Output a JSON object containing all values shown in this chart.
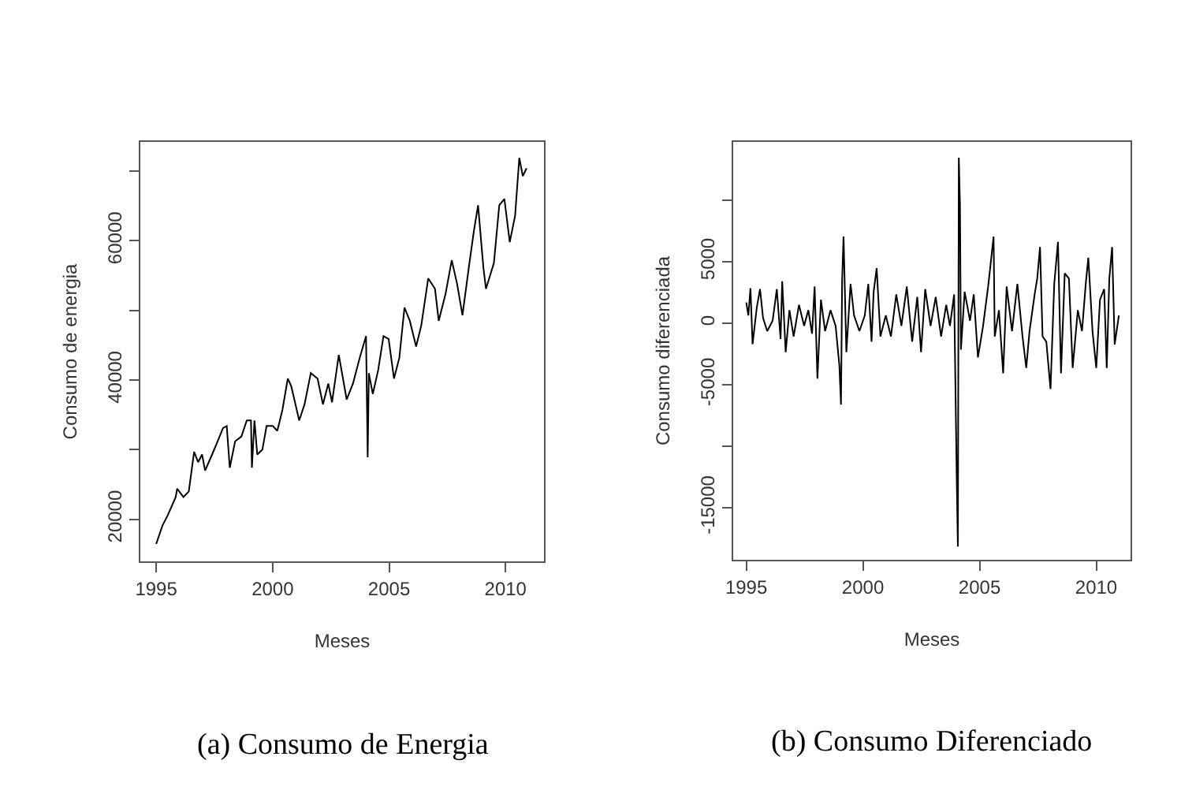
{
  "chart_data": [
    {
      "type": "line",
      "xlabel": "Meses",
      "ylabel": "Consumo de energia",
      "annotations": [
        "(a) Consumo de Energia"
      ],
      "x": [
        1995.0,
        1995.27,
        1995.5,
        1995.84,
        1995.9,
        1996.17,
        1996.4,
        1996.63,
        1996.8,
        1996.97,
        1997.1,
        1997.4,
        1997.64,
        1997.87,
        1998.03,
        1998.16,
        1998.39,
        1998.66,
        1998.89,
        1999.07,
        1999.11,
        1999.22,
        1999.34,
        1999.56,
        1999.74,
        2000.01,
        2000.2,
        2000.42,
        2000.65,
        2000.8,
        2001.14,
        2001.37,
        2001.64,
        2001.93,
        2002.16,
        2002.39,
        2002.55,
        2002.84,
        2003.18,
        2003.45,
        2003.74,
        2004.01,
        2004.08,
        2004.13,
        2004.3,
        2004.53,
        2004.76,
        2004.98,
        2005.21,
        2005.44,
        2005.66,
        2005.89,
        2006.16,
        2006.38,
        2006.68,
        2006.97,
        2007.13,
        2007.42,
        2007.69,
        2007.92,
        2008.15,
        2008.42,
        2008.64,
        2008.82,
        2009.05,
        2009.16,
        2009.5,
        2009.73,
        2009.95,
        2010.18,
        2010.41,
        2010.59,
        2010.74,
        2010.9
      ],
      "series": [
        {
          "color": "#000000",
          "values": [
            16450,
            19100,
            20600,
            23200,
            24400,
            23200,
            24000,
            29700,
            28200,
            29300,
            27000,
            29300,
            31200,
            33100,
            33400,
            27400,
            31200,
            31900,
            34200,
            34200,
            27400,
            34200,
            29300,
            30000,
            33400,
            33400,
            32700,
            35700,
            40200,
            39100,
            34200,
            36500,
            41000,
            40200,
            36500,
            39500,
            36800,
            43600,
            37200,
            39500,
            43200,
            46300,
            28900,
            41000,
            38000,
            41400,
            46300,
            45900,
            40200,
            43200,
            50400,
            48500,
            44800,
            47800,
            54600,
            53100,
            48500,
            52300,
            57200,
            53800,
            49300,
            56100,
            61400,
            65100,
            56100,
            53100,
            56800,
            65100,
            66000,
            59800,
            63600,
            71900,
            69300,
            70400
          ]
        }
      ],
      "xlim": [
        1994.32,
        2011.65
      ],
      "xticks": [
        1995,
        2000,
        2005,
        2010
      ],
      "ylim": [
        13960,
        74190
      ],
      "yticks": [
        20000,
        {
          "value": 30000,
          "label": null
        },
        40000,
        {
          "value": 50000,
          "label": null
        },
        60000,
        {
          "value": 70000,
          "label": null
        }
      ],
      "grid": false
    },
    {
      "type": "line",
      "xlabel": "Meses",
      "ylabel": "Consumo diferenciada",
      "annotations": [
        "(b) Consumo Diferenciado"
      ],
      "x": [
        1995.0,
        1995.09,
        1995.18,
        1995.27,
        1995.45,
        1995.59,
        1995.72,
        1995.9,
        1996.13,
        1996.31,
        1996.47,
        1996.54,
        1996.69,
        1996.85,
        1997.03,
        1997.26,
        1997.48,
        1997.66,
        1997.82,
        1997.93,
        1998.05,
        1998.2,
        1998.38,
        1998.61,
        1998.83,
        1998.99,
        1999.06,
        1999.11,
        1999.17,
        1999.29,
        1999.47,
        1999.62,
        1999.85,
        2000.08,
        2000.23,
        2000.37,
        2000.46,
        2000.59,
        2000.75,
        2000.98,
        2001.2,
        2001.43,
        2001.65,
        2001.88,
        2002.11,
        2002.33,
        2002.49,
        2002.67,
        2002.9,
        2003.12,
        2003.35,
        2003.57,
        2003.73,
        2003.91,
        2004.02,
        2004.07,
        2004.11,
        2004.16,
        2004.2,
        2004.36,
        2004.59,
        2004.75,
        2004.93,
        2005.15,
        2005.38,
        2005.6,
        2005.65,
        2005.83,
        2006.01,
        2006.16,
        2006.39,
        2006.62,
        2006.84,
        2007.0,
        2007.14,
        2007.36,
        2007.47,
        2007.59,
        2007.7,
        2007.86,
        2008.04,
        2008.2,
        2008.36,
        2008.49,
        2008.65,
        2008.83,
        2008.99,
        2009.21,
        2009.39,
        2009.55,
        2009.66,
        2009.84,
        2010.0,
        2010.16,
        2010.34,
        2010.45,
        2010.56,
        2010.68,
        2010.79,
        2010.97
      ],
      "series": [
        {
          "color": "#000000",
          "values": [
            1700,
            640,
            2860,
            -1700,
            1280,
            2780,
            430,
            -640,
            210,
            2780,
            -1280,
            3420,
            -2350,
            1070,
            -1070,
            1500,
            -210,
            1070,
            -850,
            2990,
            -4490,
            1920,
            -640,
            1070,
            -210,
            -3420,
            -6620,
            3630,
            7050,
            -2350,
            3200,
            640,
            -640,
            640,
            3200,
            -1500,
            2560,
            4490,
            -1070,
            640,
            -1070,
            2350,
            -210,
            2990,
            -1500,
            2140,
            -2350,
            2780,
            -210,
            2140,
            -1070,
            1500,
            -210,
            2350,
            -12600,
            -18160,
            13460,
            9620,
            -2140,
            2560,
            210,
            2350,
            -2780,
            -210,
            3200,
            7050,
            -1070,
            1070,
            -4060,
            2990,
            -640,
            3200,
            -1070,
            -3630,
            -640,
            2350,
            3630,
            6200,
            -1070,
            -1500,
            -5340,
            3200,
            6620,
            -4060,
            4060,
            3630,
            -3630,
            1070,
            -640,
            3200,
            5340,
            -640,
            -3630,
            1920,
            2780,
            -3630,
            3630,
            6200,
            -1710,
            640
          ]
        }
      ],
      "xlim": [
        1994.44,
        2011.47
      ],
      "xticks": [
        1995,
        2000,
        2005,
        2010
      ],
      "ylim": [
        -19230,
        14750
      ],
      "yticks": [
        {
          "value": -15000,
          "label": "-15000"
        },
        {
          "value": -10000,
          "label": null
        },
        {
          "value": -5000,
          "label": "-5000"
        },
        0,
        5000,
        {
          "value": 10000,
          "label": null
        }
      ],
      "grid": false
    }
  ]
}
